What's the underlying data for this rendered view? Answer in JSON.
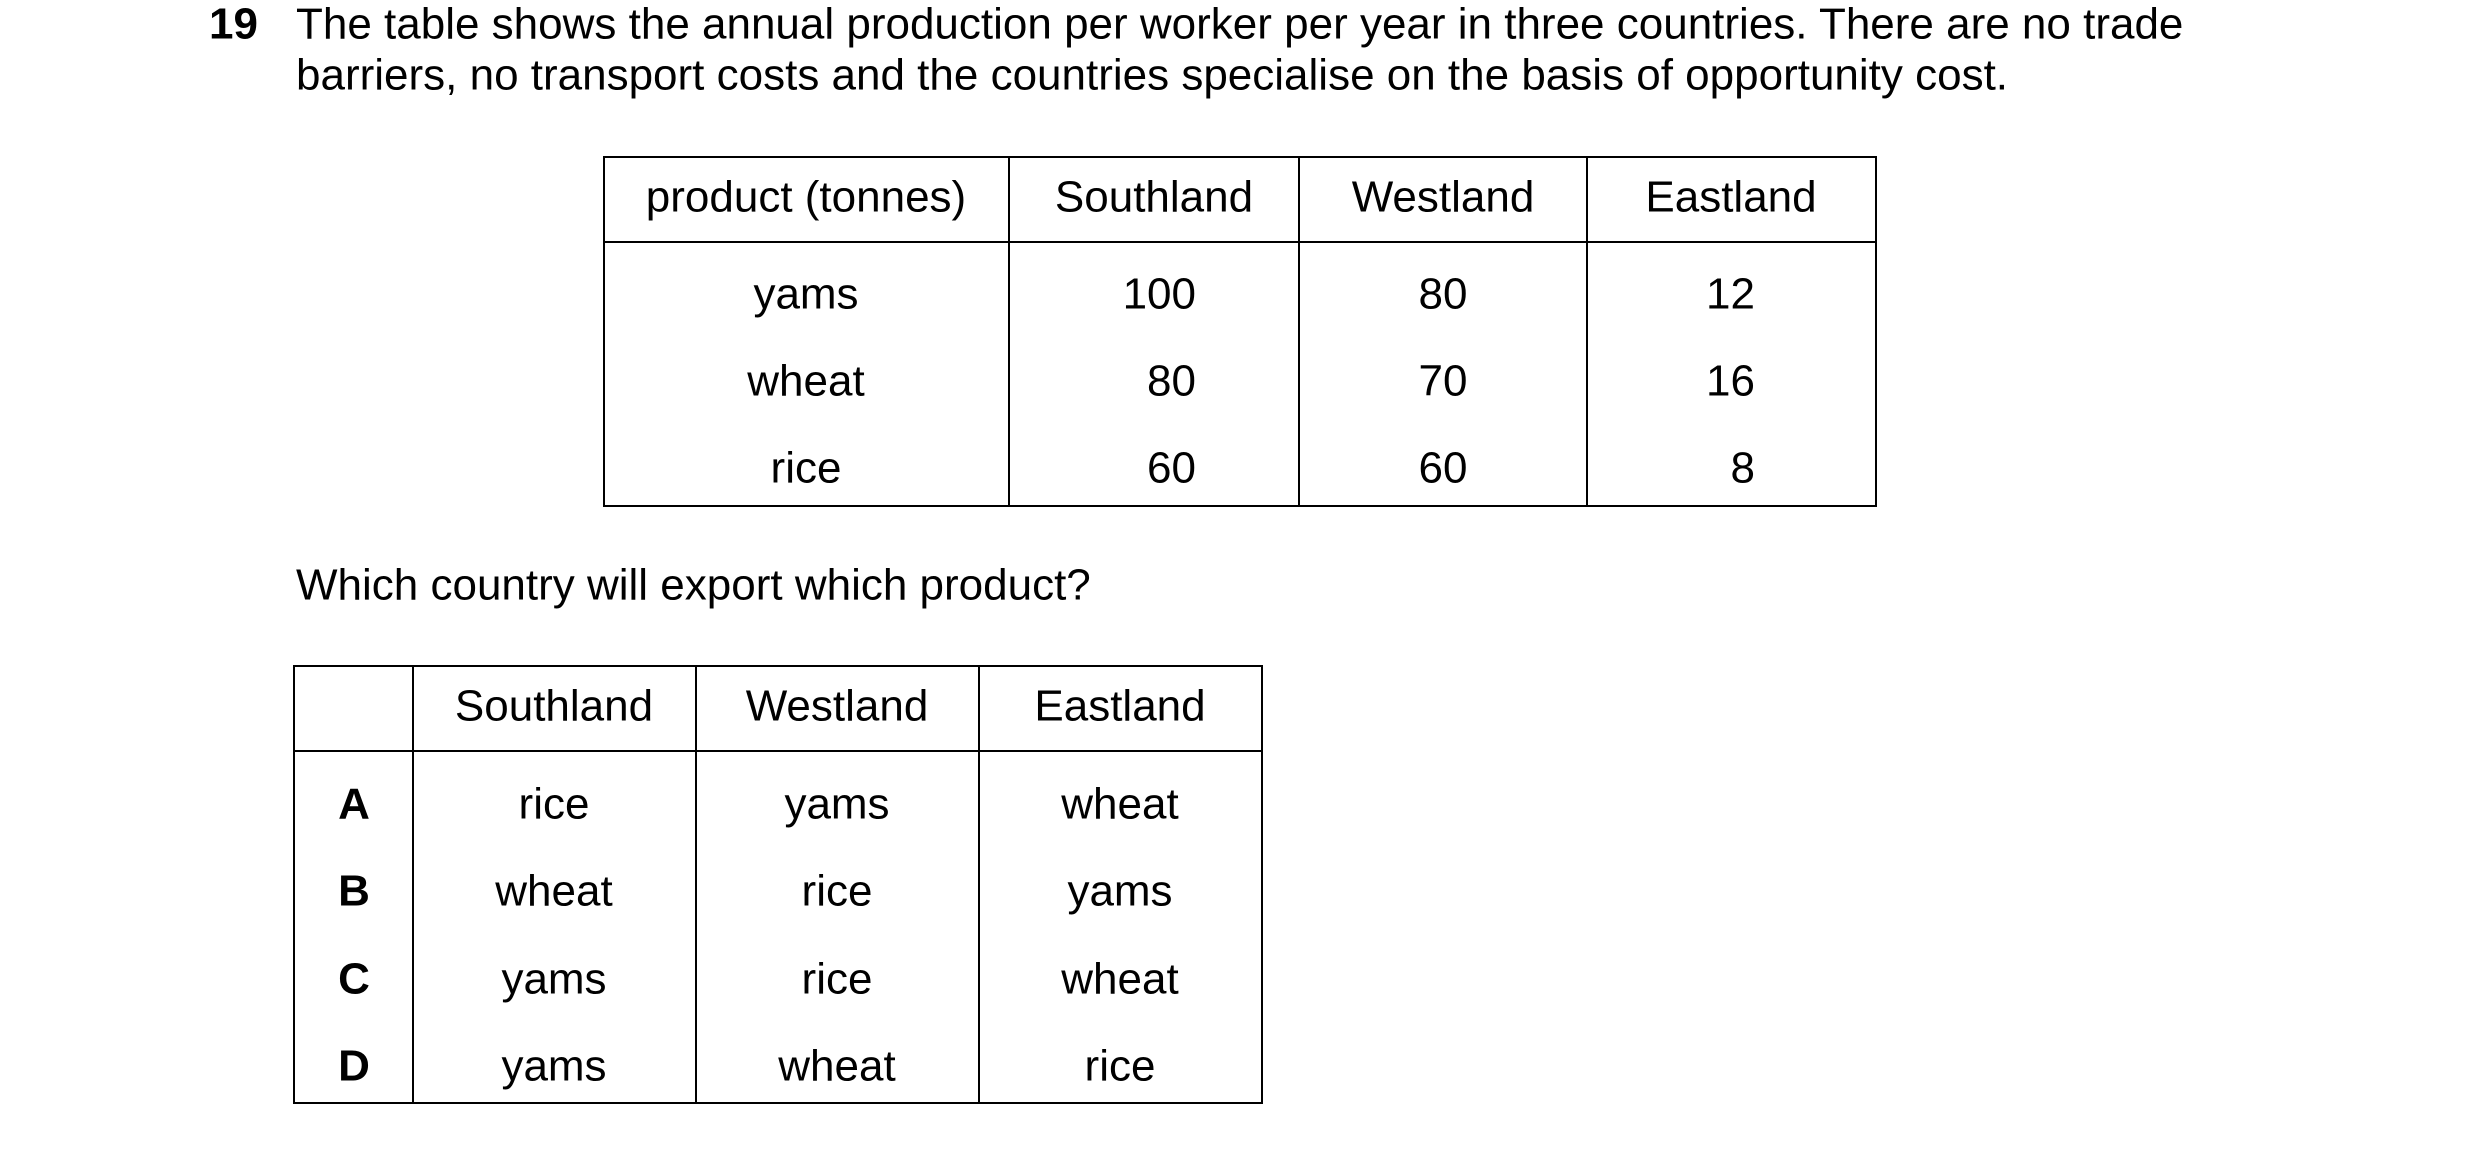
{
  "question": {
    "number": "19",
    "stem": [
      "The table shows the annual production per worker per year in three countries. There are no trade",
      "barriers, no transport costs and the countries specialise on the basis of opportunity cost."
    ],
    "table": {
      "header": [
        "product (tonnes)",
        "Southland",
        "Westland",
        "Eastland"
      ],
      "rows": [
        [
          "yams",
          100,
          80,
          12
        ],
        [
          "wheat",
          80,
          70,
          16
        ],
        [
          "rice",
          60,
          60,
          8
        ]
      ]
    },
    "prompt": "Which country will export which product?",
    "options": {
      "header": [
        "Southland",
        "Westland",
        "Eastland"
      ],
      "rows": [
        {
          "key": "A",
          "cells": [
            "rice",
            "yams",
            "wheat"
          ]
        },
        {
          "key": "B",
          "cells": [
            "wheat",
            "rice",
            "yams"
          ]
        },
        {
          "key": "C",
          "cells": [
            "yams",
            "rice",
            "wheat"
          ]
        },
        {
          "key": "D",
          "cells": [
            "yams",
            "wheat",
            "rice"
          ]
        }
      ]
    }
  }
}
